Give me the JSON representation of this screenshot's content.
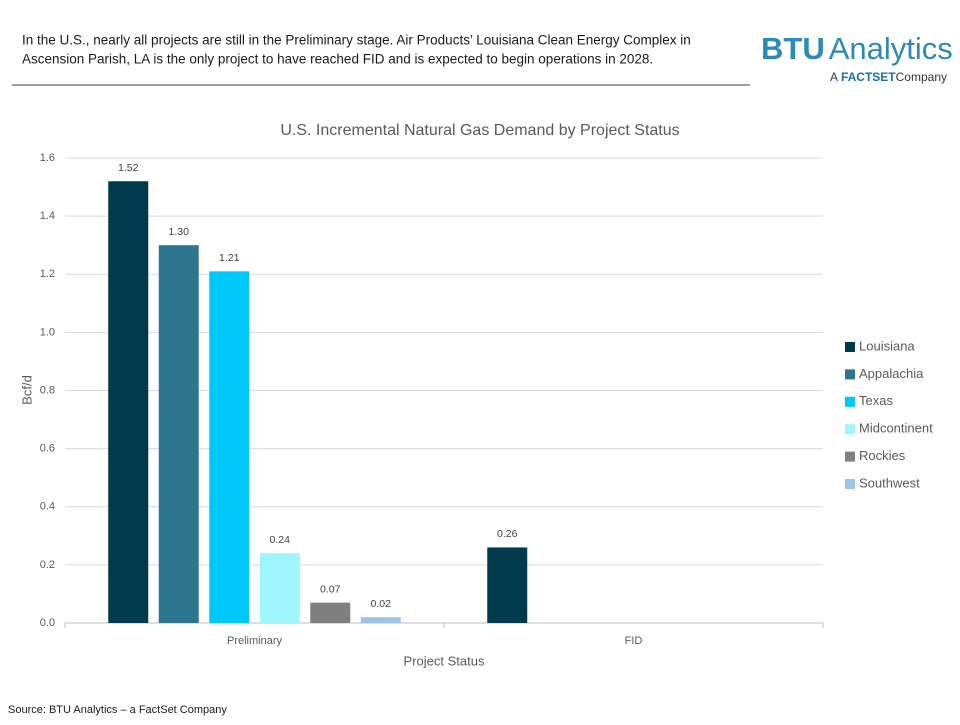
{
  "header": {
    "text_lines": [
      "In the U.S., nearly all projects are still in the Preliminary stage. Air Products’ Louisiana Clean Energy Complex in",
      "Ascension Parish, LA is the only project to have reached FID and is expected to begin operations in 2028."
    ],
    "logo": {
      "brand": "BTU",
      "word": "Analytics",
      "tagline_prefix": "A",
      "tagline_brand": "FACTSET",
      "tagline_suffix": "Company"
    }
  },
  "source": "Source: BTU Analytics – a FactSet Company",
  "chart_data": {
    "type": "bar",
    "title": "U.S. Incremental Natural Gas Demand by Project Status",
    "x_label": "Project Status",
    "y_label": "Bcf/d",
    "categories": [
      "Preliminary",
      "FID"
    ],
    "series": [
      {
        "name": "Louisiana",
        "color": "#023a4d",
        "values": [
          1.52,
          0.26
        ],
        "value_labels": [
          "1.52",
          "0.26"
        ]
      },
      {
        "name": "Appalachia",
        "color": "#2e758f",
        "values": [
          1.3,
          null
        ],
        "value_labels": [
          "1.30",
          null
        ]
      },
      {
        "name": "Texas",
        "color": "#00c8f8",
        "values": [
          1.21,
          null
        ],
        "value_labels": [
          "1.21",
          null
        ]
      },
      {
        "name": "Midcontinent",
        "color": "#9ef5fb",
        "values": [
          0.24,
          null
        ],
        "value_labels": [
          "0.24",
          null
        ]
      },
      {
        "name": "Rockies",
        "color": "#7f7f7f",
        "values": [
          0.07,
          null
        ],
        "value_labels": [
          "0.07",
          null
        ]
      },
      {
        "name": "Southwest",
        "color": "#9dc3e6",
        "values": [
          0.02,
          null
        ],
        "value_labels": [
          "0.02",
          null
        ]
      }
    ],
    "ylim": [
      0,
      1.6
    ],
    "yticks": [
      {
        "value": 0,
        "label": "0.0"
      },
      0.2,
      0.4,
      0.6,
      0.8,
      {
        "value": 1,
        "label": "1.0"
      },
      1.2,
      1.4,
      1.6
    ],
    "grid": true,
    "legend": "right"
  }
}
